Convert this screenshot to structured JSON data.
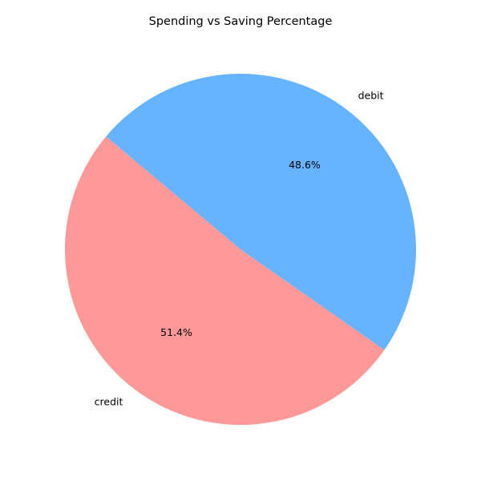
{
  "chart_data": {
    "type": "pie",
    "title": "Spending vs Saving Percentage",
    "slices": [
      {
        "label": "credit",
        "value": 51.4,
        "pct_label": "51.4%",
        "color": "#ff9999"
      },
      {
        "label": "debit",
        "value": 48.6,
        "pct_label": "48.6%",
        "color": "#66b3ff"
      }
    ],
    "start_angle_deg": 140,
    "direction": "counterclockwise",
    "legend": "none"
  }
}
